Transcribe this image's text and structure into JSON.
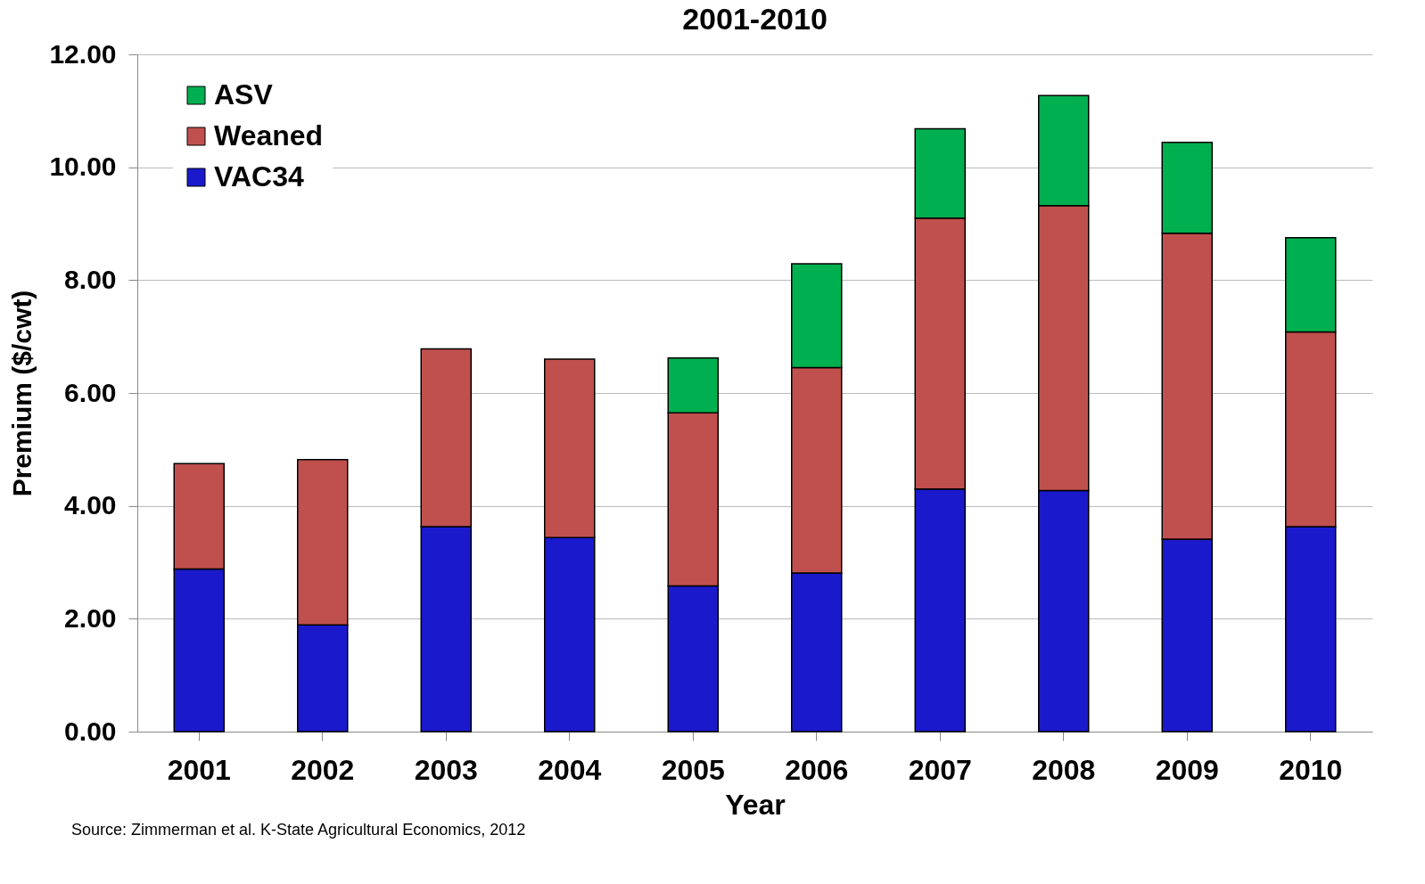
{
  "chart_data": {
    "type": "bar",
    "title": "2001-2010",
    "xlabel": "Year",
    "ylabel": "Premium ($/cwt)",
    "stacked": true,
    "grid": "y",
    "legend": "top left",
    "categories": [
      "2001",
      "2002",
      "2003",
      "2004",
      "2005",
      "2006",
      "2007",
      "2008",
      "2009",
      "2010"
    ],
    "series": [
      {
        "name": "VAC34",
        "color": "#1a1acc",
        "values": [
          2.88,
          1.89,
          3.63,
          3.44,
          2.58,
          2.81,
          4.3,
          4.27,
          3.41,
          3.63
        ]
      },
      {
        "name": "Weaned",
        "color": "#c0504d",
        "values": [
          1.87,
          2.93,
          3.15,
          3.16,
          3.07,
          3.64,
          4.8,
          5.05,
          5.42,
          3.45
        ]
      },
      {
        "name": "ASV",
        "color": "#00b050",
        "values": [
          null,
          null,
          null,
          null,
          0.97,
          1.84,
          1.58,
          1.95,
          1.61,
          1.67
        ]
      }
    ],
    "ylim": [
      0,
      12
    ],
    "yticks": [
      {
        "value": 0,
        "label": "0.00"
      },
      {
        "value": 2,
        "label": "2.00"
      },
      {
        "value": 4,
        "label": "4.00"
      },
      {
        "value": 6,
        "label": "6.00"
      },
      {
        "value": 8,
        "label": "8.00"
      },
      {
        "value": 10,
        "label": "10.00"
      },
      {
        "value": 12,
        "label": "12.00"
      }
    ],
    "annotations": [
      "Source: Zimmerman et al. K-State Agricultural Economics, 2012"
    ]
  }
}
